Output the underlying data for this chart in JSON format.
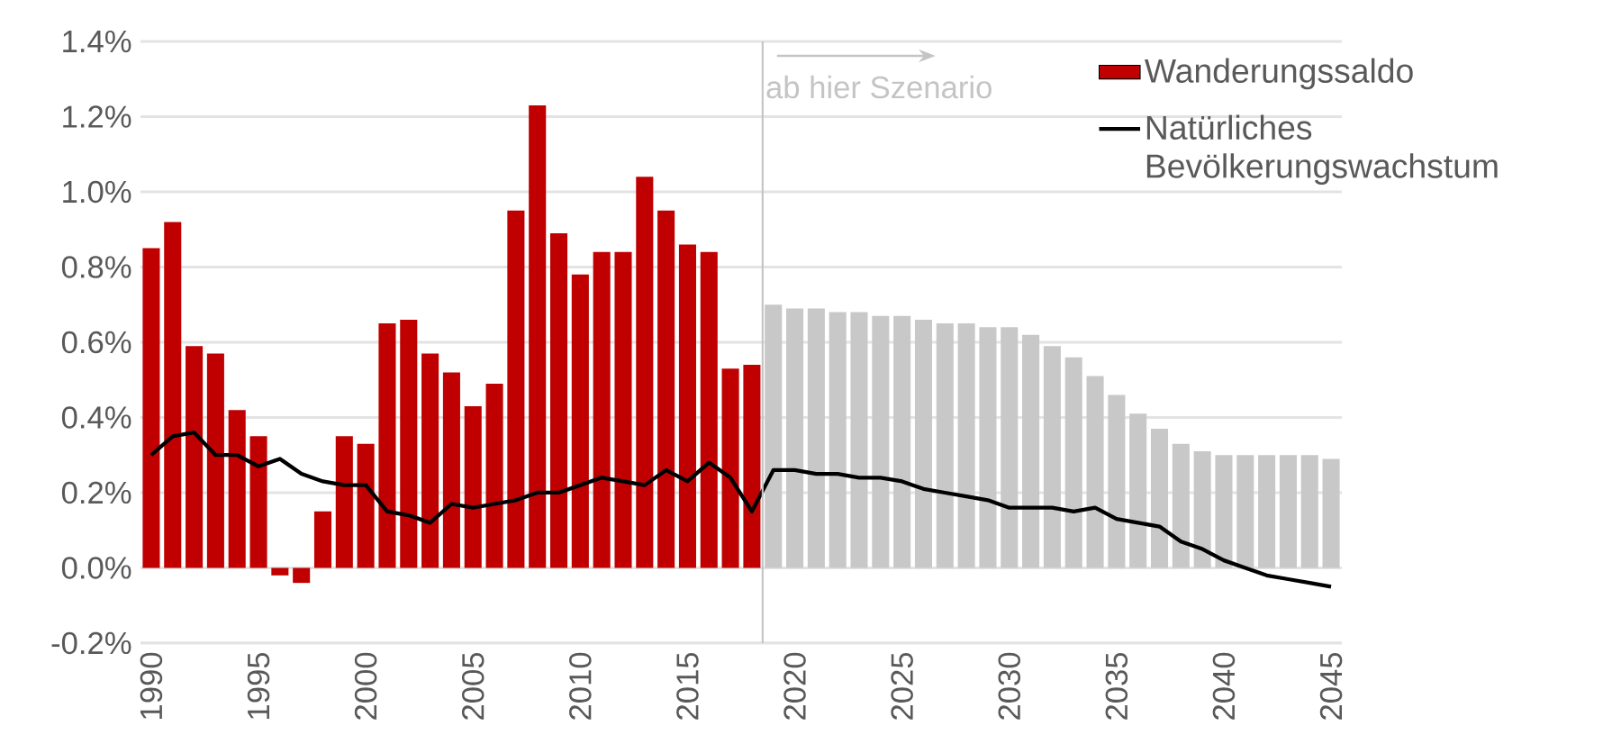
{
  "chart_data": {
    "type": "bar",
    "x": [
      1990,
      1991,
      1992,
      1993,
      1994,
      1995,
      1996,
      1997,
      1998,
      1999,
      2000,
      2001,
      2002,
      2003,
      2004,
      2005,
      2006,
      2007,
      2008,
      2009,
      2010,
      2011,
      2012,
      2013,
      2014,
      2015,
      2016,
      2017,
      2018,
      2019,
      2020,
      2021,
      2022,
      2023,
      2024,
      2025,
      2026,
      2027,
      2028,
      2029,
      2030,
      2031,
      2032,
      2033,
      2034,
      2035,
      2036,
      2037,
      2038,
      2039,
      2040,
      2041,
      2042,
      2043,
      2044,
      2045
    ],
    "series": [
      {
        "name": "Wanderungssaldo",
        "color": "#c00000",
        "colors": [
          "#c00000",
          "#c00000",
          "#c00000",
          "#c00000",
          "#c00000",
          "#c00000",
          "#c00000",
          "#c00000",
          "#c00000",
          "#c00000",
          "#c00000",
          "#c00000",
          "#c00000",
          "#c00000",
          "#c00000",
          "#c00000",
          "#c00000",
          "#c00000",
          "#c00000",
          "#c00000",
          "#c00000",
          "#c00000",
          "#c00000",
          "#c00000",
          "#c00000",
          "#c00000",
          "#c00000",
          "#c00000",
          "#c00000",
          "#c8c8c8",
          "#c8c8c8",
          "#c8c8c8",
          "#c8c8c8",
          "#c8c8c8",
          "#c8c8c8",
          "#c8c8c8",
          "#c8c8c8",
          "#c8c8c8",
          "#c8c8c8",
          "#c8c8c8",
          "#c8c8c8",
          "#c8c8c8",
          "#c8c8c8",
          "#c8c8c8",
          "#c8c8c8",
          "#c8c8c8",
          "#c8c8c8",
          "#c8c8c8",
          "#c8c8c8",
          "#c8c8c8",
          "#c8c8c8",
          "#c8c8c8",
          "#c8c8c8",
          "#c8c8c8",
          "#c8c8c8",
          "#c8c8c8"
        ],
        "values": [
          0.85,
          0.92,
          0.59,
          0.57,
          0.42,
          0.35,
          -0.02,
          -0.04,
          0.15,
          0.35,
          0.33,
          0.65,
          0.66,
          0.57,
          0.52,
          0.43,
          0.49,
          0.95,
          1.23,
          0.89,
          0.78,
          0.84,
          0.84,
          1.04,
          0.95,
          0.86,
          0.84,
          0.53,
          0.54,
          0.7,
          0.69,
          0.69,
          0.68,
          0.68,
          0.67,
          0.67,
          0.66,
          0.65,
          0.65,
          0.64,
          0.64,
          0.62,
          0.59,
          0.56,
          0.51,
          0.46,
          0.41,
          0.37,
          0.33,
          0.31,
          0.3,
          0.3,
          0.3,
          0.3,
          0.3,
          0.29
        ]
      },
      {
        "name": "Natürliches Bevölkerungswachstum",
        "type": "line",
        "color": "#000000",
        "line_style": "solid",
        "values": [
          0.3,
          0.35,
          0.36,
          0.3,
          0.3,
          0.27,
          0.29,
          0.25,
          0.23,
          0.22,
          0.22,
          0.15,
          0.14,
          0.12,
          0.17,
          0.16,
          0.17,
          0.18,
          0.2,
          0.2,
          0.22,
          0.24,
          0.23,
          0.22,
          0.26,
          0.23,
          0.28,
          0.24,
          0.15,
          0.26,
          0.26,
          0.25,
          0.25,
          0.24,
          0.24,
          0.23,
          0.21,
          0.2,
          0.19,
          0.18,
          0.16,
          0.16,
          0.16,
          0.15,
          0.16,
          0.13,
          0.12,
          0.11,
          0.07,
          0.05,
          0.02,
          0.0,
          -0.02,
          -0.03,
          -0.04,
          -0.05
        ]
      }
    ],
    "xlim": [
      1989.5,
      2045.5
    ],
    "xticks": [
      1990,
      1995,
      2000,
      2005,
      2010,
      2015,
      2020,
      2025,
      2030,
      2035,
      2040,
      2045
    ],
    "ylim": [
      -0.2,
      1.4
    ],
    "yticks": [
      {
        "value": -0.2,
        "label": "-0.2%"
      },
      {
        "value": 0.0,
        "label": "0.0%"
      },
      {
        "value": 0.2,
        "label": "0.2%"
      },
      {
        "value": 0.4,
        "label": "0.4%"
      },
      {
        "value": 0.6,
        "label": "0.6%"
      },
      {
        "value": 0.8,
        "label": "0.8%"
      },
      {
        "value": 1.0,
        "label": "1.0%"
      },
      {
        "value": 1.2,
        "label": "1.2%"
      },
      {
        "value": 1.4,
        "label": "1.4%"
      }
    ],
    "ref_lines": [
      {
        "axis": "x",
        "value": 2018.5,
        "label": "ab hier Szenario",
        "color": "#c4c4c4"
      }
    ],
    "grid": "y",
    "legend": "top right",
    "marker": "none"
  }
}
